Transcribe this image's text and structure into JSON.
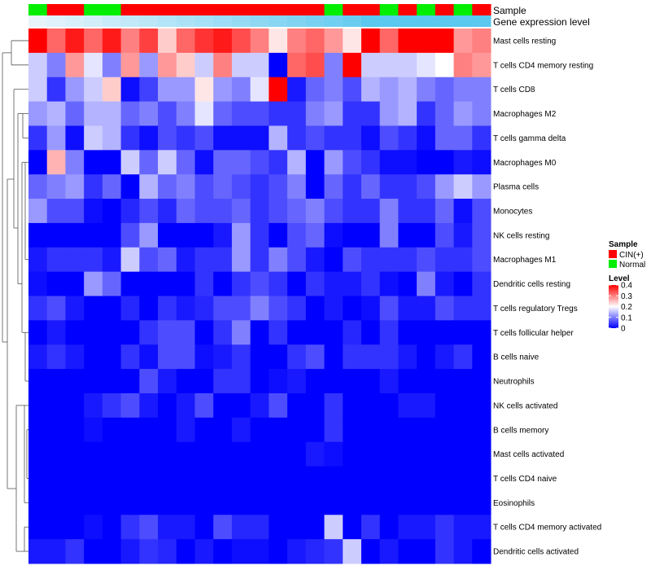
{
  "chart_data": {
    "type": "heatmap",
    "track_labels": {
      "sample": "Sample",
      "gene_expression": "Gene expression level"
    },
    "sample_annotation": [
      "Normal",
      "CIN(+)",
      "CIN(+)",
      "Normal",
      "Normal",
      "CIN(+)",
      "CIN(+)",
      "CIN(+)",
      "CIN(+)",
      "CIN(+)",
      "CIN(+)",
      "CIN(+)",
      "CIN(+)",
      "CIN(+)",
      "CIN(+)",
      "CIN(+)",
      "Normal",
      "CIN(+)",
      "CIN(+)",
      "Normal",
      "CIN(+)",
      "Normal",
      "CIN(+)",
      "Normal",
      "CIN(+)"
    ],
    "gene_expression_track": [
      0.05,
      0.1,
      0.15,
      0.2,
      0.25,
      0.3,
      0.35,
      0.4,
      0.45,
      0.5,
      0.55,
      0.6,
      0.65,
      0.7,
      0.75,
      0.8,
      0.85,
      0.9,
      1.0,
      1.0,
      1.0,
      1.0,
      1.0,
      1.0,
      1.0
    ],
    "rows": [
      "Mast cells resting",
      "T cells CD4 memory resting",
      "T cells CD8",
      "Macrophages M2",
      "T cells gamma delta",
      "Macrophages M0",
      "Plasma cells",
      "Monocytes",
      "NK cells resting",
      "Macrophages M1",
      "Dendritic cells resting",
      "T cells regulatory  Tregs",
      "T cells follicular helper",
      "B cells naive",
      "Neutrophils",
      "NK cells activated",
      "B cells memory",
      "Mast cells activated",
      "T cells CD4 naive",
      "Eosinophils",
      "T cells CD4 memory activated",
      "Dendritic cells activated"
    ],
    "values": [
      [
        0.4,
        0.32,
        0.38,
        0.32,
        0.38,
        0.3,
        0.35,
        0.24,
        0.32,
        0.36,
        0.38,
        0.34,
        0.3,
        0.22,
        0.3,
        0.32,
        0.28,
        0.22,
        0.4,
        0.32,
        0.4,
        0.4,
        0.4,
        0.28,
        0.3
      ],
      [
        0.16,
        0.1,
        0.28,
        0.18,
        0.1,
        0.28,
        0.12,
        0.28,
        0.24,
        0.16,
        0.3,
        0.16,
        0.16,
        0.0,
        0.32,
        0.34,
        0.1,
        0.4,
        0.16,
        0.16,
        0.16,
        0.18,
        0.2,
        0.3,
        0.28
      ],
      [
        0.16,
        0.04,
        0.12,
        0.16,
        0.24,
        0.01,
        0.05,
        0.12,
        0.12,
        0.22,
        0.12,
        0.1,
        0.18,
        0.4,
        0.02,
        0.08,
        0.1,
        0.06,
        0.14,
        0.12,
        0.14,
        0.1,
        0.08,
        0.1,
        0.1
      ],
      [
        0.12,
        0.14,
        0.08,
        0.14,
        0.14,
        0.08,
        0.1,
        0.06,
        0.1,
        0.18,
        0.08,
        0.06,
        0.06,
        0.04,
        0.04,
        0.1,
        0.12,
        0.04,
        0.04,
        0.12,
        0.14,
        0.04,
        0.08,
        0.12,
        0.1
      ],
      [
        0.04,
        0.12,
        0.01,
        0.16,
        0.14,
        0.04,
        0.01,
        0.06,
        0.04,
        0.06,
        0.01,
        0.01,
        0.01,
        0.14,
        0.04,
        0.06,
        0.04,
        0.04,
        0.01,
        0.06,
        0.04,
        0.01,
        0.08,
        0.08,
        0.04
      ],
      [
        0.0,
        0.26,
        0.1,
        0.0,
        0.0,
        0.16,
        0.08,
        0.16,
        0.08,
        0.01,
        0.08,
        0.08,
        0.06,
        0.04,
        0.14,
        0.0,
        0.12,
        0.06,
        0.04,
        0.01,
        0.01,
        0.0,
        0.0,
        0.02,
        0.01
      ],
      [
        0.08,
        0.1,
        0.12,
        0.04,
        0.08,
        0.0,
        0.14,
        0.08,
        0.1,
        0.06,
        0.08,
        0.06,
        0.04,
        0.06,
        0.1,
        0.0,
        0.08,
        0.04,
        0.08,
        0.04,
        0.04,
        0.06,
        0.12,
        0.16,
        0.12
      ],
      [
        0.12,
        0.06,
        0.06,
        0.01,
        0.0,
        0.03,
        0.06,
        0.03,
        0.08,
        0.06,
        0.06,
        0.08,
        0.04,
        0.06,
        0.08,
        0.1,
        0.06,
        0.04,
        0.04,
        0.1,
        0.04,
        0.04,
        0.08,
        0.01,
        0.06
      ],
      [
        0.0,
        0.0,
        0.0,
        0.0,
        0.0,
        0.06,
        0.12,
        0.0,
        0.0,
        0.0,
        0.02,
        0.12,
        0.04,
        0.0,
        0.06,
        0.08,
        0.01,
        0.0,
        0.0,
        0.1,
        0.0,
        0.0,
        0.06,
        0.02,
        0.06
      ],
      [
        0.02,
        0.04,
        0.04,
        0.04,
        0.02,
        0.16,
        0.06,
        0.08,
        0.02,
        0.04,
        0.04,
        0.12,
        0.04,
        0.1,
        0.06,
        0.02,
        0.0,
        0.06,
        0.04,
        0.04,
        0.04,
        0.06,
        0.04,
        0.04,
        0.06
      ],
      [
        0.01,
        0.0,
        0.0,
        0.12,
        0.08,
        0.0,
        0.0,
        0.0,
        0.0,
        0.04,
        0.0,
        0.04,
        0.06,
        0.04,
        0.0,
        0.04,
        0.02,
        0.02,
        0.04,
        0.01,
        0.0,
        0.1,
        0.02,
        0.0,
        0.04
      ],
      [
        0.04,
        0.06,
        0.02,
        0.0,
        0.0,
        0.03,
        0.0,
        0.04,
        0.02,
        0.03,
        0.06,
        0.06,
        0.1,
        0.06,
        0.04,
        0.0,
        0.02,
        0.0,
        0.01,
        0.06,
        0.02,
        0.02,
        0.06,
        0.04,
        0.04
      ],
      [
        0.0,
        0.02,
        0.0,
        0.0,
        0.0,
        0.0,
        0.04,
        0.06,
        0.06,
        0.0,
        0.04,
        0.1,
        0.0,
        0.04,
        0.0,
        0.0,
        0.0,
        0.03,
        0.0,
        0.04,
        0.0,
        0.0,
        0.0,
        0.0,
        0.0
      ],
      [
        0.02,
        0.04,
        0.02,
        0.0,
        0.0,
        0.04,
        0.01,
        0.06,
        0.06,
        0.01,
        0.02,
        0.04,
        0.0,
        0.0,
        0.04,
        0.06,
        0.0,
        0.04,
        0.04,
        0.04,
        0.02,
        0.0,
        0.02,
        0.04,
        0.0
      ],
      [
        0.0,
        0.0,
        0.0,
        0.0,
        0.0,
        0.0,
        0.06,
        0.02,
        0.0,
        0.0,
        0.04,
        0.04,
        0.0,
        0.01,
        0.02,
        0.0,
        0.0,
        0.0,
        0.0,
        0.02,
        0.0,
        0.0,
        0.0,
        0.0,
        0.0
      ],
      [
        0.0,
        0.0,
        0.0,
        0.02,
        0.04,
        0.06,
        0.02,
        0.0,
        0.02,
        0.06,
        0.0,
        0.0,
        0.02,
        0.06,
        0.0,
        0.0,
        0.04,
        0.0,
        0.0,
        0.0,
        0.02,
        0.02,
        0.0,
        0.0,
        0.0
      ],
      [
        0.0,
        0.0,
        0.0,
        0.01,
        0.0,
        0.0,
        0.0,
        0.0,
        0.02,
        0.0,
        0.0,
        0.02,
        0.0,
        0.0,
        0.0,
        0.0,
        0.04,
        0.0,
        0.0,
        0.0,
        0.0,
        0.0,
        0.0,
        0.0,
        0.0
      ],
      [
        0.0,
        0.0,
        0.0,
        0.0,
        0.0,
        0.0,
        0.0,
        0.0,
        0.0,
        0.0,
        0.0,
        0.0,
        0.0,
        0.0,
        0.0,
        0.02,
        0.01,
        0.0,
        0.0,
        0.0,
        0.0,
        0.0,
        0.0,
        0.0,
        0.0
      ],
      [
        0.0,
        0.0,
        0.0,
        0.0,
        0.0,
        0.0,
        0.0,
        0.0,
        0.0,
        0.0,
        0.0,
        0.0,
        0.0,
        0.0,
        0.0,
        0.0,
        0.0,
        0.0,
        0.0,
        0.0,
        0.0,
        0.0,
        0.0,
        0.0,
        0.0
      ],
      [
        0.0,
        0.0,
        0.0,
        0.0,
        0.0,
        0.0,
        0.0,
        0.0,
        0.0,
        0.0,
        0.0,
        0.0,
        0.0,
        0.0,
        0.0,
        0.0,
        0.0,
        0.0,
        0.0,
        0.0,
        0.0,
        0.0,
        0.0,
        0.0,
        0.0
      ],
      [
        0.0,
        0.0,
        0.0,
        0.01,
        0.0,
        0.04,
        0.06,
        0.02,
        0.02,
        0.0,
        0.06,
        0.03,
        0.03,
        0.0,
        0.0,
        0.0,
        0.16,
        0.0,
        0.04,
        0.0,
        0.02,
        0.02,
        0.04,
        0.02,
        0.02
      ],
      [
        0.02,
        0.02,
        0.04,
        0.0,
        0.0,
        0.02,
        0.04,
        0.03,
        0.0,
        0.02,
        0.0,
        0.01,
        0.01,
        0.0,
        0.02,
        0.03,
        0.04,
        0.16,
        0.0,
        0.02,
        0.0,
        0.0,
        0.04,
        0.02,
        0.0
      ]
    ],
    "legend": {
      "sample": {
        "title": "Sample",
        "entries": [
          {
            "label": "CIN(+)",
            "color": "#ff0000"
          },
          {
            "label": "Normal",
            "color": "#00ee00"
          }
        ]
      },
      "level": {
        "title": "Level",
        "ticks": [
          {
            "value": 0.4,
            "label": "0.4"
          },
          {
            "value": 0.3,
            "label": "0.3"
          },
          {
            "value": 0.2,
            "label": "0.2"
          },
          {
            "value": 0.1,
            "label": "0.1"
          },
          {
            "value": 0,
            "label": "0"
          }
        ],
        "range": [
          0,
          0.4
        ]
      }
    },
    "colors": {
      "low": "#0000ff",
      "mid": "#ffffff",
      "high": "#ff0000",
      "cin": "#ff0000",
      "normal": "#00ee00",
      "gene_low": "#eef7fc",
      "gene_high": "#5bc8ef"
    }
  }
}
